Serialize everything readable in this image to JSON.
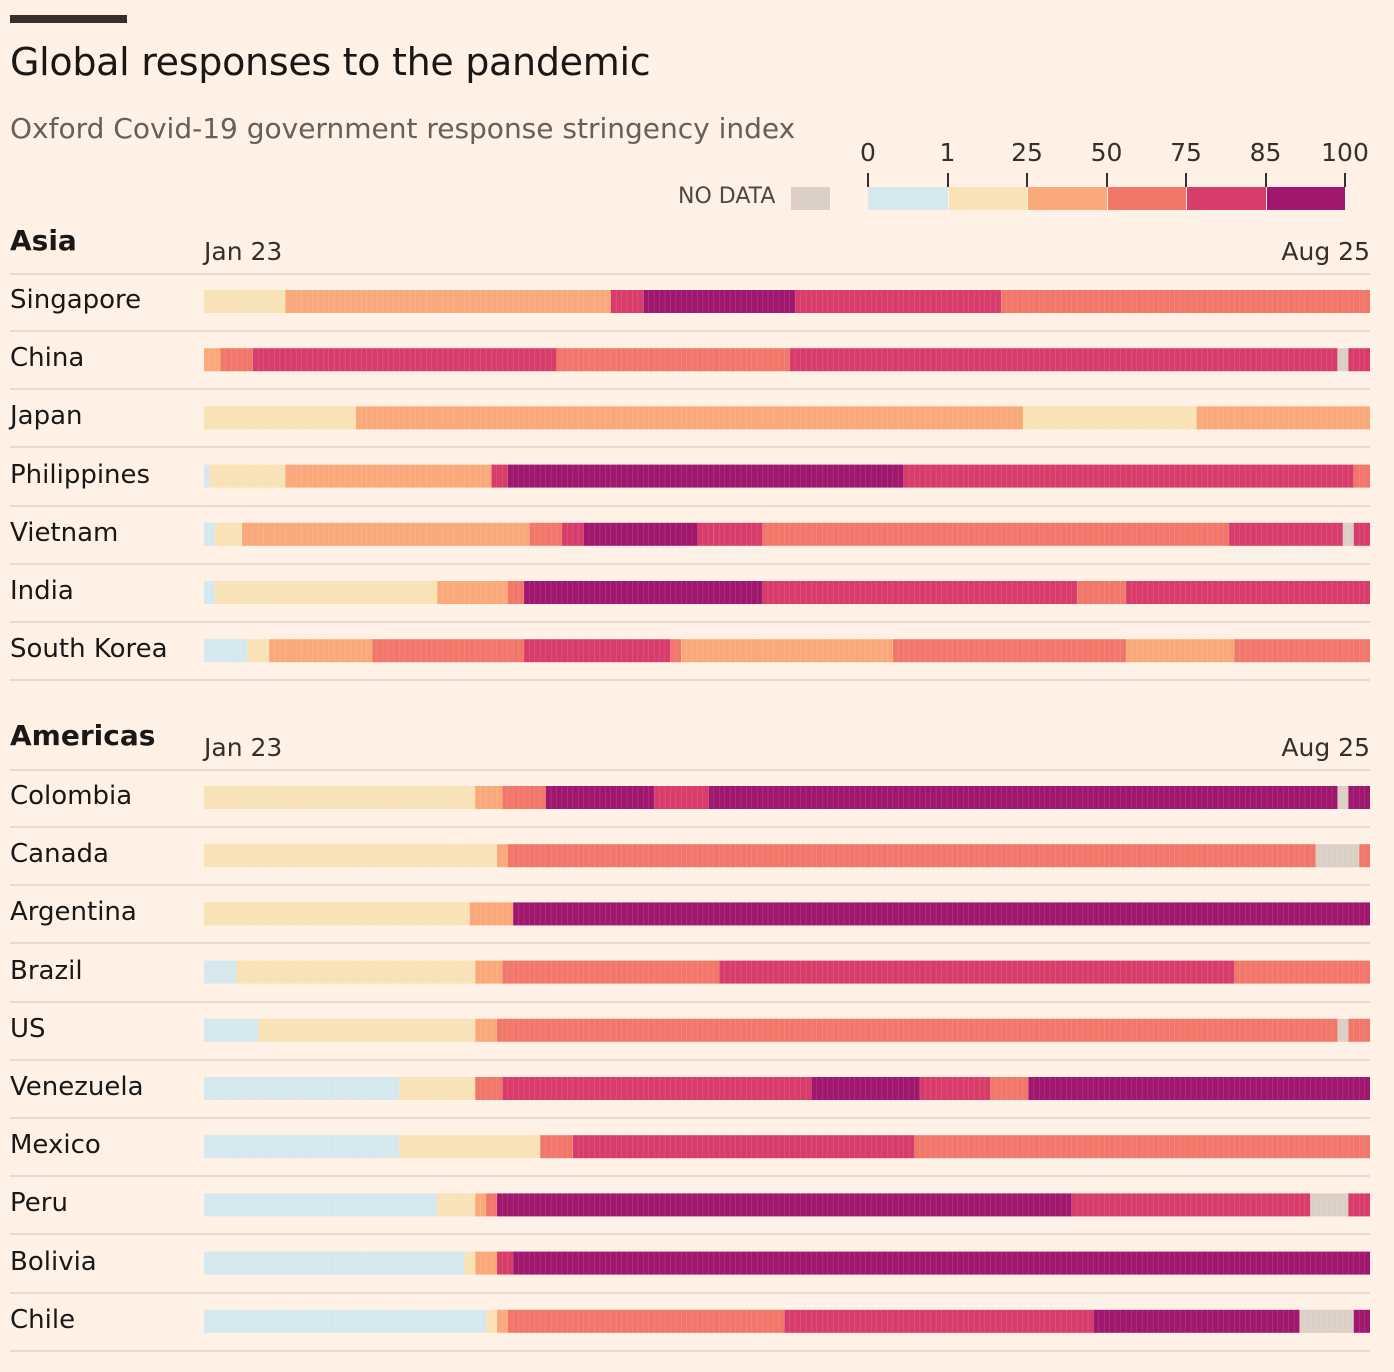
{
  "title": "Global responses to the pandemic",
  "subtitle": "Oxford Covid-19 government response stringency index",
  "legend": {
    "no_data_label": "NO DATA",
    "no_data_color": "#dbcfc6",
    "bins": [
      {
        "from": 0,
        "to": 1,
        "color": "#d5e8ee"
      },
      {
        "from": 1,
        "to": 25,
        "color": "#f8e2b6"
      },
      {
        "from": 25,
        "to": 50,
        "color": "#f9a97a"
      },
      {
        "from": 50,
        "to": 75,
        "color": "#f2776b"
      },
      {
        "from": 75,
        "to": 85,
        "color": "#d83c6b"
      },
      {
        "from": 85,
        "to": 100,
        "color": "#a0176e"
      }
    ],
    "tick_labels": [
      "0",
      "1",
      "25",
      "50",
      "75",
      "85",
      "100"
    ]
  },
  "chart_data": [
    {
      "type": "heatmap",
      "region": "Asia",
      "x_start_label": "Jan 23",
      "x_end_label": "Aug 25",
      "x_range": [
        "Jan 23",
        "Aug 25"
      ],
      "rows": [
        {
          "country": "Singapore",
          "segments": [
            {
              "from": "Jan 23",
              "to": "Feb 7",
              "level": 1
            },
            {
              "from": "Feb 7",
              "to": "Apr 7",
              "level": 2
            },
            {
              "from": "Apr 7",
              "to": "Apr 13",
              "level": 4
            },
            {
              "from": "Apr 13",
              "to": "May 11",
              "level": 5
            },
            {
              "from": "May 11",
              "to": "Jun 18",
              "level": 4
            },
            {
              "from": "Jun 18",
              "to": "Aug 25",
              "level": 3
            }
          ]
        },
        {
          "country": "China",
          "segments": [
            {
              "from": "Jan 23",
              "to": "Jan 26",
              "level": 2
            },
            {
              "from": "Jan 26",
              "to": "Feb 1",
              "level": 3
            },
            {
              "from": "Feb 1",
              "to": "Mar 28",
              "level": 4
            },
            {
              "from": "Mar 28",
              "to": "May 10",
              "level": 3
            },
            {
              "from": "May 10",
              "to": "Aug 19",
              "level": 4
            },
            {
              "from": "Aug 19",
              "to": "Aug 21",
              "level": "nodata"
            },
            {
              "from": "Aug 21",
              "to": "Aug 25",
              "level": 4
            }
          ]
        },
        {
          "country": "Japan",
          "segments": [
            {
              "from": "Jan 23",
              "to": "Feb 20",
              "level": 1
            },
            {
              "from": "Feb 20",
              "to": "Jun 22",
              "level": 2
            },
            {
              "from": "Jun 22",
              "to": "Jul 24",
              "level": 1
            },
            {
              "from": "Jul 24",
              "to": "Aug 25",
              "level": 2
            }
          ]
        },
        {
          "country": "Philippines",
          "segments": [
            {
              "from": "Jan 23",
              "to": "Jan 24",
              "level": 0
            },
            {
              "from": "Jan 24",
              "to": "Feb 7",
              "level": 1
            },
            {
              "from": "Feb 7",
              "to": "Mar 16",
              "level": 2
            },
            {
              "from": "Mar 16",
              "to": "Mar 19",
              "level": 4
            },
            {
              "from": "Mar 19",
              "to": "May 31",
              "level": 5
            },
            {
              "from": "May 31",
              "to": "Aug 22",
              "level": 4
            },
            {
              "from": "Aug 22",
              "to": "Aug 25",
              "level": 3
            }
          ]
        },
        {
          "country": "Vietnam",
          "segments": [
            {
              "from": "Jan 23",
              "to": "Jan 25",
              "level": 0
            },
            {
              "from": "Jan 25",
              "to": "Jan 30",
              "level": 1
            },
            {
              "from": "Jan 30",
              "to": "Mar 23",
              "level": 2
            },
            {
              "from": "Mar 23",
              "to": "Mar 29",
              "level": 3
            },
            {
              "from": "Mar 29",
              "to": "Apr 2",
              "level": 4
            },
            {
              "from": "Apr 2",
              "to": "Apr 23",
              "level": 5
            },
            {
              "from": "Apr 23",
              "to": "Apr 26",
              "level": 4
            },
            {
              "from": "Apr 26",
              "to": "May 5",
              "level": 4
            },
            {
              "from": "May 5",
              "to": "Jul 30",
              "level": 3
            },
            {
              "from": "Jul 30",
              "to": "Aug 20",
              "level": 4
            },
            {
              "from": "Aug 20",
              "to": "Aug 22",
              "level": "nodata"
            },
            {
              "from": "Aug 22",
              "to": "Aug 25",
              "level": 4
            }
          ]
        },
        {
          "country": "India",
          "segments": [
            {
              "from": "Jan 23",
              "to": "Jan 25",
              "level": 0
            },
            {
              "from": "Jan 25",
              "to": "Mar 6",
              "level": 1
            },
            {
              "from": "Mar 6",
              "to": "Mar 19",
              "level": 2
            },
            {
              "from": "Mar 19",
              "to": "Mar 22",
              "level": 3
            },
            {
              "from": "Mar 22",
              "to": "May 5",
              "level": 5
            },
            {
              "from": "May 5",
              "to": "Jul 2",
              "level": 4
            },
            {
              "from": "Jul 2",
              "to": "Jul 11",
              "level": 3
            },
            {
              "from": "Jul 11",
              "to": "Aug 25",
              "level": 4
            }
          ]
        },
        {
          "country": "South Korea",
          "segments": [
            {
              "from": "Jan 23",
              "to": "Jan 31",
              "level": 0
            },
            {
              "from": "Jan 31",
              "to": "Feb 4",
              "level": 1
            },
            {
              "from": "Feb 4",
              "to": "Feb 23",
              "level": 2
            },
            {
              "from": "Feb 23",
              "to": "Mar 22",
              "level": 3
            },
            {
              "from": "Mar 22",
              "to": "Apr 18",
              "level": 4
            },
            {
              "from": "Apr 18",
              "to": "Apr 20",
              "level": 3
            },
            {
              "from": "Apr 20",
              "to": "May 29",
              "level": 2
            },
            {
              "from": "May 29",
              "to": "Jul 11",
              "level": 3
            },
            {
              "from": "Jul 11",
              "to": "Jul 31",
              "level": 2
            },
            {
              "from": "Jul 31",
              "to": "Aug 25",
              "level": 3
            }
          ]
        }
      ]
    },
    {
      "type": "heatmap",
      "region": "Americas",
      "x_start_label": "Jan 23",
      "x_end_label": "Aug 25",
      "x_range": [
        "Jan 23",
        "Aug 25"
      ],
      "rows": [
        {
          "country": "Colombia",
          "segments": [
            {
              "from": "Jan 23",
              "to": "Mar 13",
              "level": 1
            },
            {
              "from": "Mar 13",
              "to": "Mar 18",
              "level": 2
            },
            {
              "from": "Mar 18",
              "to": "Mar 26",
              "level": 3
            },
            {
              "from": "Mar 26",
              "to": "Apr 15",
              "level": 5
            },
            {
              "from": "Apr 15",
              "to": "Apr 25",
              "level": 4
            },
            {
              "from": "Apr 25",
              "to": "Aug 19",
              "level": 5
            },
            {
              "from": "Aug 19",
              "to": "Aug 21",
              "level": "nodata"
            },
            {
              "from": "Aug 21",
              "to": "Aug 25",
              "level": 5
            }
          ]
        },
        {
          "country": "Canada",
          "segments": [
            {
              "from": "Jan 23",
              "to": "Mar 17",
              "level": 1
            },
            {
              "from": "Mar 17",
              "to": "Mar 19",
              "level": 2
            },
            {
              "from": "Mar 19",
              "to": "Aug 15",
              "level": 3
            },
            {
              "from": "Aug 15",
              "to": "Aug 23",
              "level": "nodata"
            },
            {
              "from": "Aug 23",
              "to": "Aug 25",
              "level": 3
            }
          ]
        },
        {
          "country": "Argentina",
          "segments": [
            {
              "from": "Jan 23",
              "to": "Mar 12",
              "level": 1
            },
            {
              "from": "Mar 12",
              "to": "Mar 20",
              "level": 2
            },
            {
              "from": "Mar 20",
              "to": "Aug 25",
              "level": 5
            }
          ]
        },
        {
          "country": "Brazil",
          "segments": [
            {
              "from": "Jan 23",
              "to": "Jan 29",
              "level": 0
            },
            {
              "from": "Jan 29",
              "to": "Mar 13",
              "level": 1
            },
            {
              "from": "Mar 13",
              "to": "Mar 18",
              "level": 2
            },
            {
              "from": "Mar 18",
              "to": "Apr 27",
              "level": 3
            },
            {
              "from": "Apr 27",
              "to": "Jul 31",
              "level": 4
            },
            {
              "from": "Jul 31",
              "to": "Aug 25",
              "level": 3
            }
          ]
        },
        {
          "country": "US",
          "segments": [
            {
              "from": "Jan 23",
              "to": "Feb 2",
              "level": 0
            },
            {
              "from": "Feb 2",
              "to": "Mar 13",
              "level": 1
            },
            {
              "from": "Mar 13",
              "to": "Mar 17",
              "level": 2
            },
            {
              "from": "Mar 17",
              "to": "Aug 19",
              "level": 3
            },
            {
              "from": "Aug 19",
              "to": "Aug 21",
              "level": "nodata"
            },
            {
              "from": "Aug 21",
              "to": "Aug 25",
              "level": 3
            }
          ]
        },
        {
          "country": "Venezuela",
          "segments": [
            {
              "from": "Jan 23",
              "to": "Feb 28",
              "level": 0
            },
            {
              "from": "Feb 28",
              "to": "Mar 13",
              "level": 1
            },
            {
              "from": "Mar 13",
              "to": "Mar 18",
              "level": 3
            },
            {
              "from": "Mar 18",
              "to": "May 14",
              "level": 4
            },
            {
              "from": "May 14",
              "to": "Jun 3",
              "level": 5
            },
            {
              "from": "Jun 3",
              "to": "Jun 16",
              "level": 4
            },
            {
              "from": "Jun 16",
              "to": "Jun 23",
              "level": 3
            },
            {
              "from": "Jun 23",
              "to": "Aug 25",
              "level": 5
            }
          ]
        },
        {
          "country": "Mexico",
          "segments": [
            {
              "from": "Jan 23",
              "to": "Feb 28",
              "level": 0
            },
            {
              "from": "Feb 28",
              "to": "Mar 25",
              "level": 1
            },
            {
              "from": "Mar 25",
              "to": "Mar 31",
              "level": 3
            },
            {
              "from": "Mar 31",
              "to": "Jun 2",
              "level": 4
            },
            {
              "from": "Jun 2",
              "to": "Aug 25",
              "level": 3
            }
          ]
        },
        {
          "country": "Peru",
          "segments": [
            {
              "from": "Jan 23",
              "to": "Mar 6",
              "level": 0
            },
            {
              "from": "Mar 6",
              "to": "Mar 13",
              "level": 1
            },
            {
              "from": "Mar 13",
              "to": "Mar 15",
              "level": 2
            },
            {
              "from": "Mar 15",
              "to": "Mar 17",
              "level": 3
            },
            {
              "from": "Mar 17",
              "to": "Jul 1",
              "level": 5
            },
            {
              "from": "Jul 1",
              "to": "Aug 14",
              "level": 4
            },
            {
              "from": "Aug 14",
              "to": "Aug 21",
              "level": "nodata"
            },
            {
              "from": "Aug 21",
              "to": "Aug 25",
              "level": 4
            }
          ]
        },
        {
          "country": "Bolivia",
          "segments": [
            {
              "from": "Jan 23",
              "to": "Mar 11",
              "level": 0
            },
            {
              "from": "Mar 11",
              "to": "Mar 13",
              "level": 1
            },
            {
              "from": "Mar 13",
              "to": "Mar 17",
              "level": 2
            },
            {
              "from": "Mar 17",
              "to": "Mar 20",
              "level": 4
            },
            {
              "from": "Mar 20",
              "to": "Aug 25",
              "level": 5
            }
          ]
        },
        {
          "country": "Chile",
          "segments": [
            {
              "from": "Jan 23",
              "to": "Mar 15",
              "level": 0
            },
            {
              "from": "Mar 15",
              "to": "Mar 17",
              "level": 1
            },
            {
              "from": "Mar 17",
              "to": "Mar 19",
              "level": 2
            },
            {
              "from": "Mar 19",
              "to": "May 9",
              "level": 3
            },
            {
              "from": "May 9",
              "to": "Jul 5",
              "level": 4
            },
            {
              "from": "Jul 5",
              "to": "Aug 12",
              "level": 5
            },
            {
              "from": "Aug 12",
              "to": "Aug 22",
              "level": "nodata"
            },
            {
              "from": "Aug 22",
              "to": "Aug 25",
              "level": 5
            }
          ]
        }
      ]
    }
  ]
}
